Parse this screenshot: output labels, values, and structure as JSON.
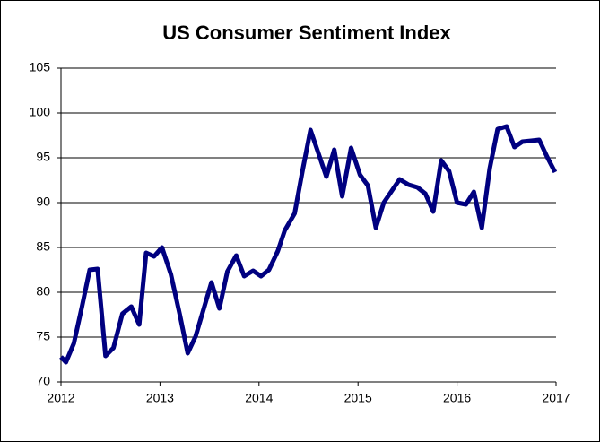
{
  "chart_data": {
    "type": "line",
    "title": "US Consumer Sentiment Index",
    "x": [
      2012.0,
      2012.05,
      2012.13,
      2012.21,
      2012.29,
      2012.37,
      2012.45,
      2012.53,
      2012.62,
      2012.71,
      2012.79,
      2012.86,
      2012.94,
      2013.02,
      2013.11,
      2013.2,
      2013.28,
      2013.36,
      2013.52,
      2013.6,
      2013.68,
      2013.77,
      2013.85,
      2013.94,
      2014.02,
      2014.1,
      2014.19,
      2014.26,
      2014.36,
      2014.44,
      2014.52,
      2014.6,
      2014.68,
      2014.76,
      2014.84,
      2014.93,
      2015.02,
      2015.1,
      2015.18,
      2015.26,
      2015.34,
      2015.42,
      2015.51,
      2015.6,
      2015.68,
      2015.76,
      2015.84,
      2015.92,
      2016.0,
      2016.09,
      2016.17,
      2016.25,
      2016.33,
      2016.41,
      2016.5,
      2016.58,
      2016.66,
      2016.75,
      2016.83,
      2016.91,
      2016.99
    ],
    "series": [
      {
        "name": "US Consumer Sentiment Index",
        "color": "#000080",
        "values": [
          72.8,
          72.2,
          74.3,
          78.3,
          82.5,
          82.6,
          72.9,
          73.8,
          77.6,
          78.4,
          76.4,
          84.4,
          84.0,
          85.0,
          82.0,
          77.5,
          73.2,
          75.1,
          81.1,
          78.2,
          82.3,
          84.1,
          81.8,
          82.4,
          81.8,
          82.5,
          84.6,
          86.9,
          88.8,
          93.6,
          98.1,
          95.5,
          92.9,
          95.9,
          90.7,
          96.1,
          93.1,
          91.9,
          87.2,
          90.0,
          91.3,
          92.6,
          92.0,
          91.7,
          91.0,
          89.0,
          94.7,
          93.5,
          90.0,
          89.8,
          91.2,
          87.2,
          93.8,
          98.2,
          98.5,
          96.2,
          96.8,
          96.9,
          97.0,
          95.1,
          93.4
        ]
      }
    ],
    "xlim": [
      2012,
      2017
    ],
    "xticks": [
      2012,
      2013,
      2014,
      2015,
      2016,
      2017
    ],
    "ylim": [
      70,
      105
    ],
    "yticks": [
      70,
      75,
      80,
      85,
      90,
      95,
      100,
      105
    ],
    "grid": true
  }
}
